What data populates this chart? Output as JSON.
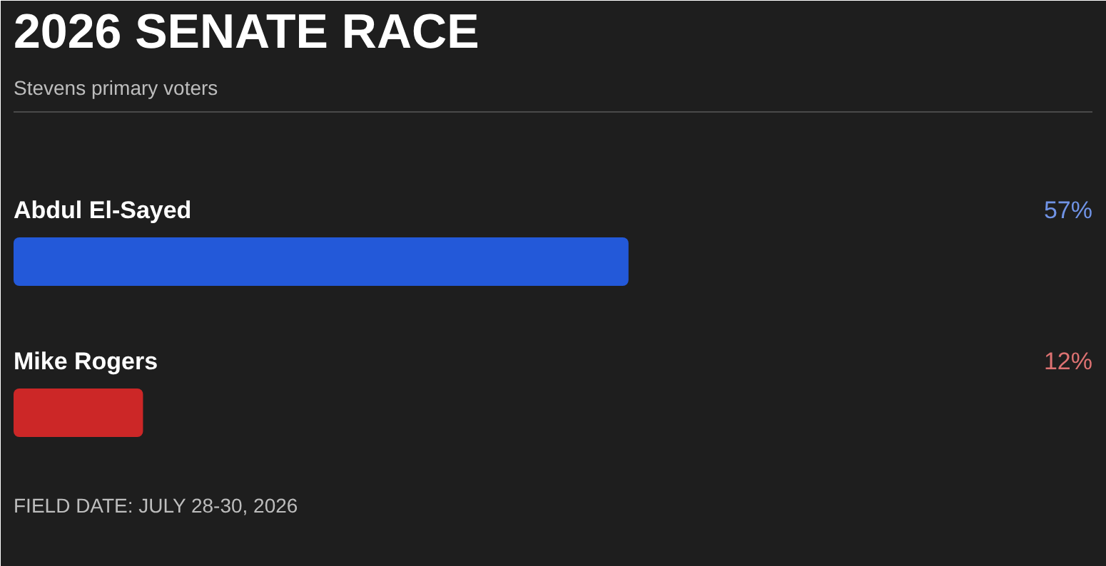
{
  "chart_data": {
    "type": "bar",
    "orientation": "horizontal",
    "title": "2026 SENATE RACE",
    "subtitle": "Stevens primary voters",
    "categories": [
      "Abdul El-Sayed",
      "Mike Rogers"
    ],
    "values": [
      57,
      12
    ],
    "colors": [
      "#2359d9",
      "#cc2727"
    ],
    "value_labels": [
      "57%",
      "12%"
    ],
    "xlim": [
      0,
      100
    ],
    "annotations": [
      "FIELD DATE: JULY 28-30, 2026"
    ]
  }
}
